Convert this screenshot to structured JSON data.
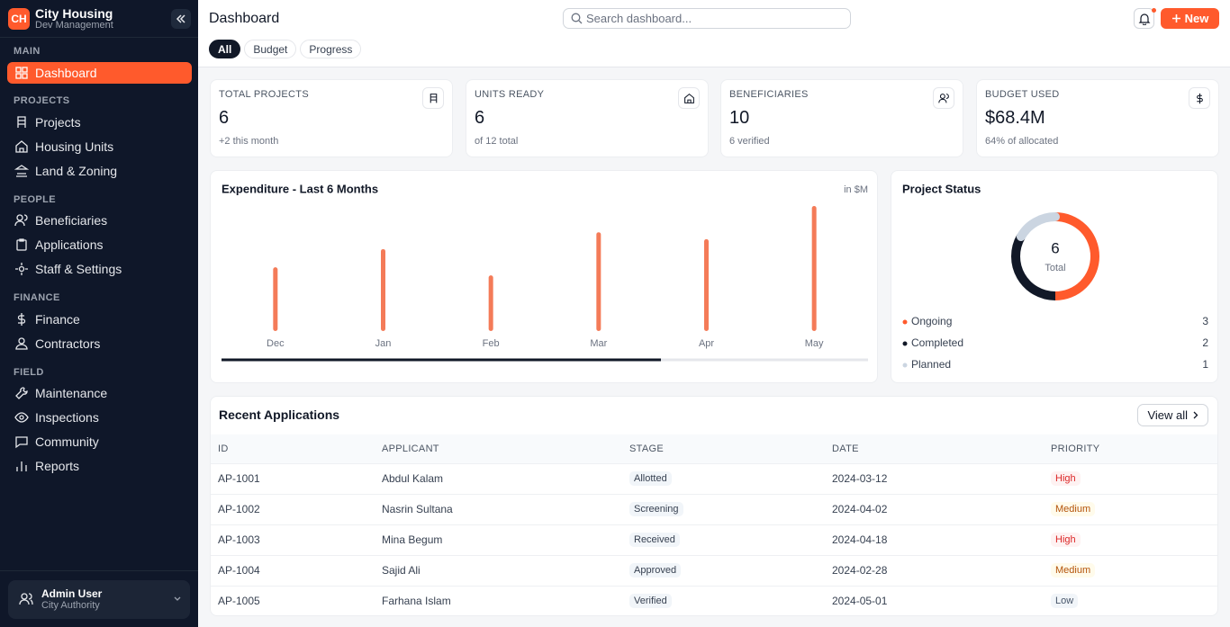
{
  "sidebar": {
    "logo": "CH",
    "brand": "City Housing",
    "subtitle": "Dev Management",
    "sections": [
      {
        "title": "MAIN",
        "items": [
          "Dashboard"
        ]
      },
      {
        "title": "PROJECTS",
        "items": [
          "Projects",
          "Housing Units",
          "Land & Zoning"
        ]
      },
      {
        "title": "PEOPLE",
        "items": [
          "Beneficiaries",
          "Applications",
          "Staff & Settings"
        ]
      },
      {
        "title": "FINANCE",
        "items": [
          "Finance",
          "Contractors"
        ]
      },
      {
        "title": "FIELD",
        "items": [
          "Maintenance",
          "Inspections",
          "Community",
          "Reports"
        ]
      }
    ],
    "user": {
      "name": "Admin User",
      "org": "City Authority"
    }
  },
  "header": {
    "title": "Dashboard",
    "search_placeholder": "Search dashboard...",
    "new_button": "New",
    "tabs": [
      "All",
      "Budget",
      "Progress"
    ]
  },
  "stats": [
    {
      "label": "TOTAL PROJECTS",
      "value": "6",
      "note": "+2 this month"
    },
    {
      "label": "UNITS READY",
      "value": "6",
      "note": "of 12 total"
    },
    {
      "label": "BENEFICIARIES",
      "value": "10",
      "note": "6 verified"
    },
    {
      "label": "BUDGET USED",
      "value": "$68.4M",
      "note": "64% of allocated"
    }
  ],
  "expenditure": {
    "chart_data": {
      "type": "bar",
      "title": "Expenditure - Last 6 Months",
      "unit_note": "in $M",
      "categories": [
        "Dec",
        "Jan",
        "Feb",
        "Mar",
        "Apr",
        "May"
      ],
      "values": [
        10.2,
        13.1,
        8.9,
        15.8,
        14.7,
        20.0
      ],
      "color": "#f47b58"
    }
  },
  "status": {
    "chart_data": {
      "type": "donut",
      "title": "Project Status",
      "center_value": "6",
      "center_label": "Total",
      "categories": [
        "Ongoing",
        "Completed",
        "Planned"
      ],
      "values": [
        3,
        2,
        1
      ],
      "colors": [
        "#ff5a2c",
        "#111827",
        "#cbd5e1"
      ]
    }
  },
  "applications": {
    "title": "Recent Applications",
    "view_all": "View all",
    "columns": [
      "ID",
      "APPLICANT",
      "STAGE",
      "DATE",
      "PRIORITY"
    ],
    "rows": [
      [
        "AP-1001",
        "Abdul Kalam",
        "Allotted",
        "2024-03-12",
        "High"
      ],
      [
        "AP-1002",
        "Nasrin Sultana",
        "Screening",
        "2024-04-02",
        "Medium"
      ],
      [
        "AP-1003",
        "Mina Begum",
        "Received",
        "2024-04-18",
        "High"
      ],
      [
        "AP-1004",
        "Sajid Ali",
        "Approved",
        "2024-02-28",
        "Medium"
      ],
      [
        "AP-1005",
        "Farhana Islam",
        "Verified",
        "2024-05-01",
        "Low"
      ]
    ]
  }
}
